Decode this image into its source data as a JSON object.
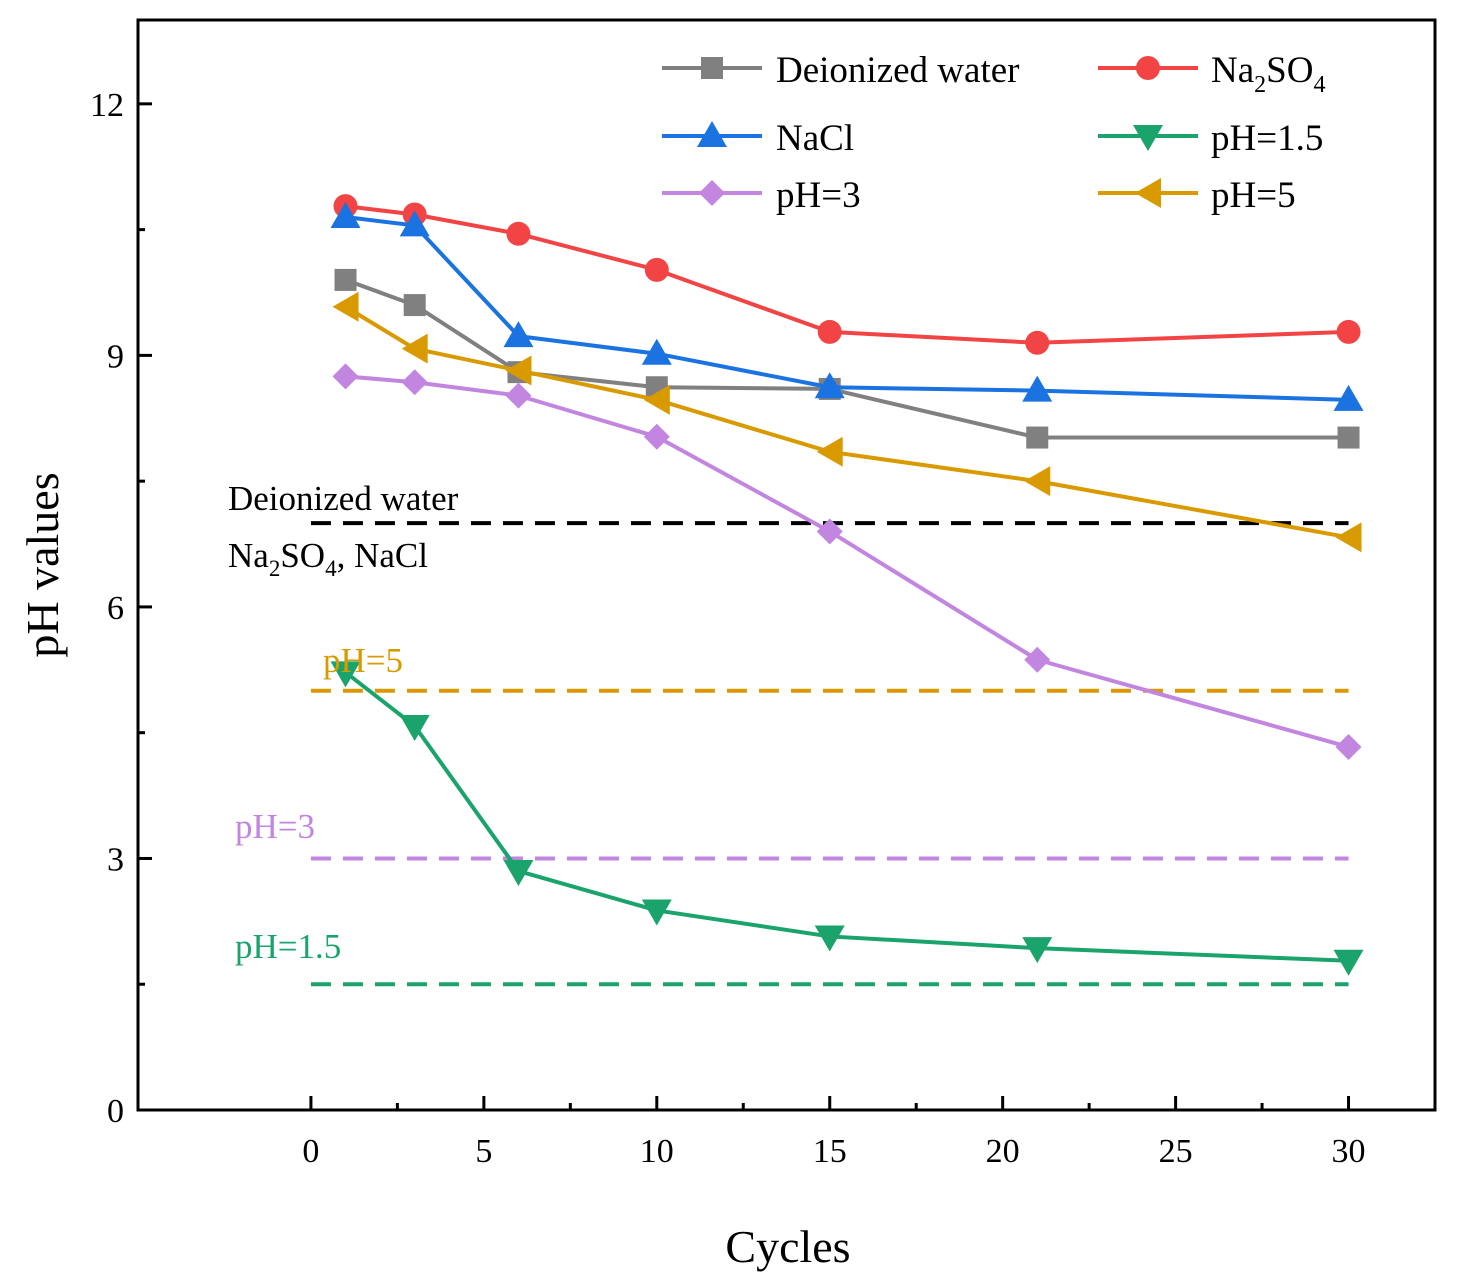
{
  "chart_data": {
    "type": "line",
    "title": "",
    "xlabel": "Cycles",
    "ylabel": "pH values",
    "xlim": [
      -5,
      32.5
    ],
    "ylim": [
      0,
      13
    ],
    "x_ticks": [
      "0",
      "5",
      "10",
      "15",
      "20",
      "25",
      "30"
    ],
    "y_ticks": [
      "0",
      "3",
      "6",
      "9",
      "12"
    ],
    "x": [
      1,
      3,
      6,
      10,
      15,
      21,
      30
    ],
    "legend_position": "top-right",
    "series": [
      {
        "name": "Deionized water",
        "color": "#808080",
        "marker": "square",
        "values": [
          9.9,
          9.6,
          8.8,
          8.62,
          8.6,
          8.02,
          8.02
        ]
      },
      {
        "name": "Na2SO4",
        "color": "#f24444",
        "marker": "circle",
        "values": [
          10.78,
          10.68,
          10.45,
          10.02,
          9.28,
          9.15,
          9.28
        ]
      },
      {
        "name": "NaCl",
        "color": "#1a73e0",
        "marker": "triangle-up",
        "values": [
          10.65,
          10.55,
          9.23,
          9.02,
          8.62,
          8.58,
          8.47
        ]
      },
      {
        "name": "pH=1.5",
        "color": "#1aa36b",
        "marker": "triangle-down",
        "values": [
          5.22,
          4.58,
          2.85,
          2.38,
          2.07,
          1.93,
          1.78
        ]
      },
      {
        "name": "pH=3",
        "color": "#c285e0",
        "marker": "diamond",
        "values": [
          8.75,
          8.68,
          8.52,
          8.03,
          6.9,
          5.37,
          4.33
        ]
      },
      {
        "name": "pH=5",
        "color": "#d99a00",
        "marker": "triangle-left",
        "values": [
          9.58,
          9.08,
          8.82,
          8.47,
          7.85,
          7.5,
          6.83
        ]
      }
    ],
    "reference_lines": [
      {
        "value": 7,
        "color": "#000000",
        "label_top": "Deionized water",
        "label_bottom_main": "Na",
        "label_bottom_sub1": "2",
        "label_bottom_mid": "SO",
        "label_bottom_sub2": "4",
        "label_bottom_rest": ", NaCl"
      },
      {
        "value": 5,
        "color": "#d99a00",
        "label": "pH=5"
      },
      {
        "value": 3,
        "color": "#c285e0",
        "label": "pH=3"
      },
      {
        "value": 1.5,
        "color": "#1aa36b",
        "label": "pH=1.5"
      }
    ]
  },
  "legend_labels": {
    "dw": "Deionized water",
    "na2so4_main": "Na",
    "na2so4_sub1": "2",
    "na2so4_mid": "SO",
    "na2so4_sub2": "4",
    "nacl": "NaCl",
    "ph15": "pH=1.5",
    "ph3": "pH=3",
    "ph5": "pH=5"
  }
}
